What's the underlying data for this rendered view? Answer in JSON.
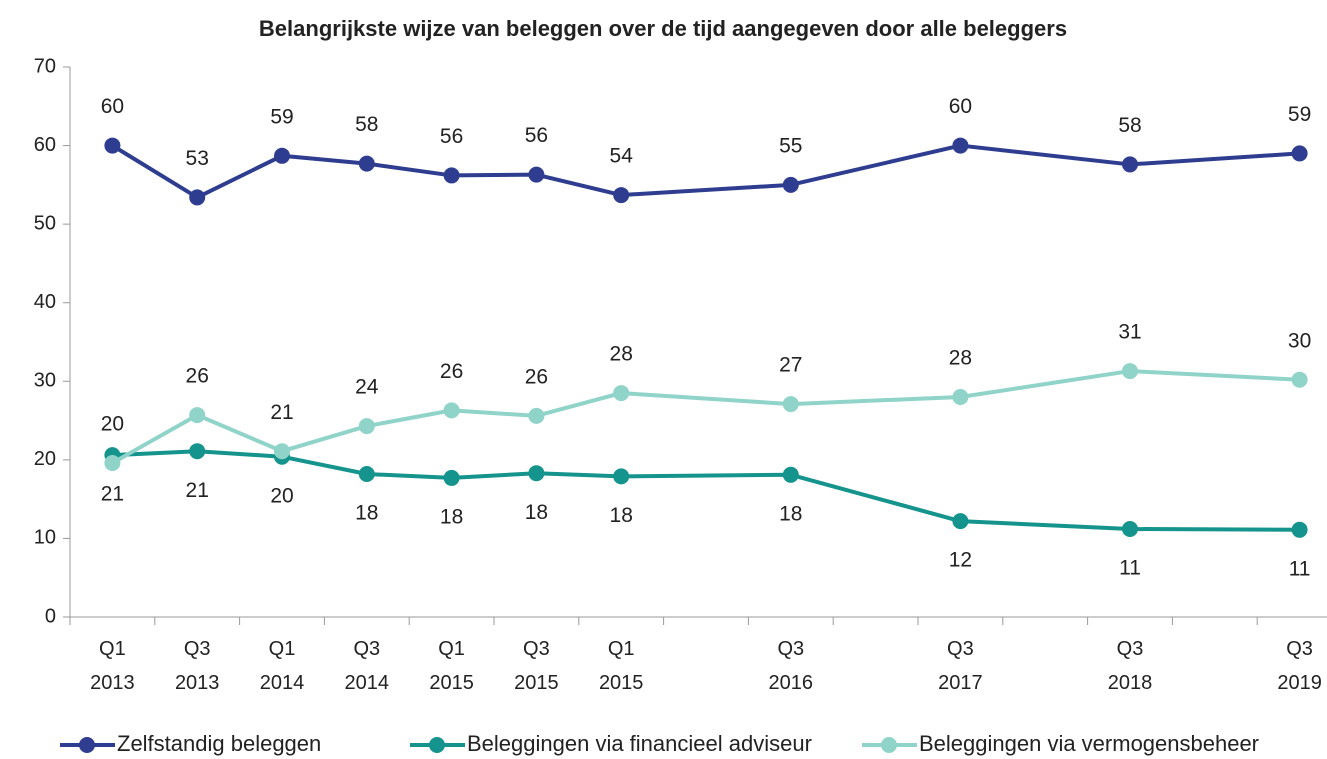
{
  "chart_data": {
    "type": "line",
    "title": "Belangrijkste wijze van beleggen over de tijd aangegeven door alle beleggers",
    "categories": [
      "Q1 2013",
      "Q3 2013",
      "Q1 2014",
      "Q3 2014",
      "Q1 2015",
      "Q3 2015",
      "Q1 2015",
      null,
      "Q3 2016",
      null,
      "Q3 2017",
      null,
      "Q3 2018",
      null,
      "Q3 2019"
    ],
    "series": [
      {
        "name": "Zelfstandig beleggen",
        "color": "#2e3d8f",
        "values": [
          60,
          53.4,
          58.7,
          57.7,
          56.2,
          56.3,
          53.7,
          null,
          55,
          null,
          60,
          null,
          57.6,
          null,
          59
        ],
        "value_labels": [
          "60",
          "53",
          "59",
          "58",
          "56",
          "56",
          "54",
          null,
          "55",
          null,
          "60",
          null,
          "58",
          null,
          "59"
        ]
      },
      {
        "name": "Beleggingen via financieel adviseur",
        "color": "#14948c",
        "values": [
          20.6,
          21.1,
          20.4,
          18.2,
          17.7,
          18.3,
          17.9,
          null,
          18.1,
          null,
          12.2,
          null,
          11.2,
          null,
          11.1
        ],
        "value_labels": [
          "21",
          "21",
          "20",
          "18",
          "18",
          "18",
          "18",
          null,
          "18",
          null,
          "12",
          null,
          "11",
          null,
          "11"
        ]
      },
      {
        "name": "Beleggingen via vermogensbeheer",
        "color": "#8fd3c9",
        "values": [
          19.6,
          25.7,
          21.1,
          24.3,
          26.3,
          25.6,
          28.5,
          null,
          27.1,
          null,
          28,
          null,
          31.3,
          null,
          30.2
        ],
        "value_labels": [
          "20",
          "26",
          "21",
          "24",
          "26",
          "26",
          "28",
          null,
          "27",
          null,
          "28",
          null,
          "31",
          null,
          "30"
        ]
      }
    ],
    "ylim": [
      0,
      70
    ],
    "yticks": [
      0,
      10,
      20,
      30,
      40,
      50,
      60,
      70
    ],
    "grid": false,
    "legend": "bottom"
  }
}
